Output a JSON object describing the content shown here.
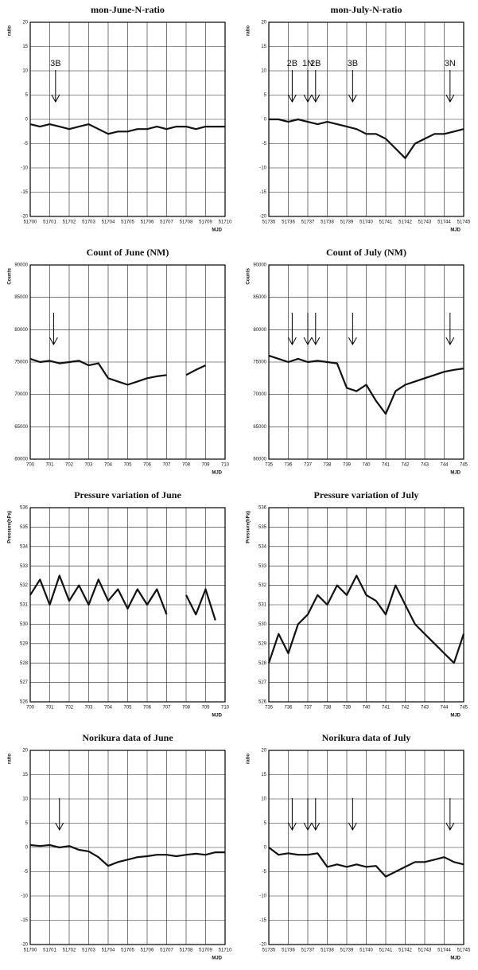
{
  "chart_data": [
    {
      "type": "line",
      "title": "mon-June-N-ratio",
      "ylabel": "ratio",
      "xlabel": "MJD",
      "x": [
        51700,
        51700.5,
        51701,
        51701.5,
        51702,
        51702.5,
        51703,
        51703.5,
        51704,
        51704.5,
        51705,
        51705.5,
        51706,
        51706.5,
        51707,
        51707.5,
        51708,
        51708.5,
        51709,
        51709.5,
        51710
      ],
      "series": [
        {
          "color": "#111111",
          "values": [
            -1,
            -1.5,
            -1,
            -1.5,
            -2,
            -1.5,
            -1,
            -2,
            -3,
            -2.5,
            -2.5,
            -2,
            -2,
            -1.5,
            -2,
            -1.5,
            -1.5,
            -2,
            -1.5,
            -1.5,
            -1.5
          ]
        }
      ],
      "xlim": [
        51700,
        51710
      ],
      "ylim": [
        -20,
        20
      ],
      "xticks": [
        51700,
        51701,
        51702,
        51703,
        51704,
        51705,
        51706,
        51707,
        51708,
        51709,
        51710
      ],
      "yticks": [
        -20,
        -15,
        -10,
        -5,
        0,
        5,
        10,
        15,
        20
      ],
      "grid": true,
      "annotations": [
        {
          "x": 51701.3,
          "label": "3B"
        }
      ]
    },
    {
      "type": "line",
      "title": "mon-July-N-ratio",
      "ylabel": "ratio",
      "xlabel": "MJD",
      "x": [
        51735,
        51735.5,
        51736,
        51736.5,
        51737,
        51737.5,
        51738,
        51738.5,
        51739,
        51739.5,
        51740,
        51740.5,
        51741,
        51741.5,
        51742,
        51742.5,
        51743,
        51743.5,
        51744,
        51744.5,
        51745
      ],
      "series": [
        {
          "color": "#111111",
          "values": [
            0,
            0,
            -0.5,
            0,
            -0.5,
            -1,
            -0.5,
            -1,
            -1.5,
            -2,
            -3,
            -3,
            -4,
            -6,
            -8,
            -5,
            -4,
            -3,
            -3,
            -2.5,
            -2
          ]
        }
      ],
      "xlim": [
        51735,
        51745
      ],
      "ylim": [
        -20,
        20
      ],
      "xticks": [
        51735,
        51736,
        51737,
        51738,
        51739,
        51740,
        51741,
        51742,
        51743,
        51744,
        51745
      ],
      "yticks": [
        -20,
        -15,
        -10,
        -5,
        0,
        5,
        10,
        15,
        20
      ],
      "grid": true,
      "annotations": [
        {
          "x": 51736.2,
          "label": "2B"
        },
        {
          "x": 51737.0,
          "label": "1N"
        },
        {
          "x": 51737.4,
          "label": "2B"
        },
        {
          "x": 51739.3,
          "label": "3B"
        },
        {
          "x": 51744.3,
          "label": "3N"
        }
      ]
    },
    {
      "type": "line",
      "title": "Count of June (NM)",
      "ylabel": "Counts",
      "xlabel": "MJD",
      "x": [
        700,
        700.5,
        701,
        701.5,
        702,
        702.5,
        703,
        703.5,
        704,
        704.5,
        705,
        705.5,
        706,
        706.5,
        707,
        707.5,
        708,
        708.5,
        709,
        709.5,
        710
      ],
      "series": [
        {
          "color": "#111111",
          "values": [
            75500,
            75000,
            75200,
            74800,
            75000,
            75200,
            74500,
            74800,
            72500,
            72000,
            71500,
            72000,
            72500,
            72800,
            73000,
            null,
            73000,
            73800,
            74500,
            null,
            null
          ]
        }
      ],
      "xlim": [
        700,
        710
      ],
      "ylim": [
        60000,
        90000
      ],
      "xticks": [
        700,
        701,
        702,
        703,
        704,
        705,
        706,
        707,
        708,
        709,
        710
      ],
      "yticks": [
        60000,
        65000,
        70000,
        75000,
        80000,
        85000,
        90000
      ],
      "grid": true,
      "arrows": [
        701.2
      ]
    },
    {
      "type": "line",
      "title": "Count of July (NM)",
      "ylabel": "Counts",
      "xlabel": "MJD",
      "x": [
        735,
        735.5,
        736,
        736.5,
        737,
        737.5,
        738,
        738.5,
        739,
        739.5,
        740,
        740.5,
        741,
        741.5,
        742,
        742.5,
        743,
        743.5,
        744,
        744.5,
        745
      ],
      "series": [
        {
          "color": "#111111",
          "values": [
            76000,
            75500,
            75000,
            75500,
            75000,
            75200,
            75000,
            74800,
            71000,
            70500,
            71500,
            69000,
            67000,
            70500,
            71500,
            72000,
            72500,
            73000,
            73500,
            73800,
            74000
          ]
        }
      ],
      "xlim": [
        735,
        745
      ],
      "ylim": [
        60000,
        90000
      ],
      "xticks": [
        735,
        736,
        737,
        738,
        739,
        740,
        741,
        742,
        743,
        744,
        745
      ],
      "yticks": [
        60000,
        65000,
        70000,
        75000,
        80000,
        85000,
        90000
      ],
      "grid": true,
      "arrows": [
        736.2,
        737.0,
        737.4,
        739.3,
        744.3
      ]
    },
    {
      "type": "line",
      "title": "Pressure variation of June",
      "ylabel": "Pressure(hPa)",
      "xlabel": "MJD",
      "x": [
        700,
        700.5,
        701,
        701.5,
        702,
        702.5,
        703,
        703.5,
        704,
        704.5,
        705,
        705.5,
        706,
        706.5,
        707,
        707.5,
        708,
        708.5,
        709,
        709.5,
        710
      ],
      "series": [
        {
          "color": "#111111",
          "values": [
            531.5,
            532.3,
            531,
            532.5,
            531.2,
            532,
            531,
            532.3,
            531.2,
            531.8,
            530.8,
            531.8,
            531,
            531.8,
            530.5,
            null,
            531.5,
            530.5,
            531.8,
            530.2,
            null
          ]
        }
      ],
      "xlim": [
        700,
        710
      ],
      "ylim": [
        526,
        536
      ],
      "xticks": [
        700,
        701,
        702,
        703,
        704,
        705,
        706,
        707,
        708,
        709,
        710
      ],
      "yticks": [
        526,
        527,
        528,
        529,
        530,
        531,
        532,
        533,
        534,
        535,
        536
      ],
      "grid": true
    },
    {
      "type": "line",
      "title": "Pressure variation of July",
      "ylabel": "Pressure(hPa)",
      "xlabel": "MJD",
      "x": [
        735,
        735.5,
        736,
        736.5,
        737,
        737.5,
        738,
        738.5,
        739,
        739.5,
        740,
        740.5,
        741,
        741.5,
        742,
        742.5,
        743,
        743.5,
        744,
        744.5,
        745
      ],
      "series": [
        {
          "color": "#111111",
          "values": [
            528,
            529.5,
            528.5,
            530,
            530.5,
            531.5,
            531,
            532,
            531.5,
            532.5,
            531.5,
            531.2,
            530.5,
            532,
            531,
            530,
            529.5,
            529,
            528.5,
            528,
            529.5
          ]
        }
      ],
      "xlim": [
        735,
        745
      ],
      "ylim": [
        526,
        536
      ],
      "xticks": [
        735,
        736,
        737,
        738,
        739,
        740,
        741,
        742,
        743,
        744,
        745
      ],
      "yticks": [
        526,
        527,
        528,
        529,
        530,
        531,
        532,
        533,
        534,
        535,
        536
      ],
      "grid": true
    },
    {
      "type": "line",
      "title": "Norikura data of June",
      "ylabel": "ratio",
      "xlabel": "MJD",
      "x": [
        51700,
        51700.5,
        51701,
        51701.5,
        51702,
        51702.5,
        51703,
        51703.5,
        51704,
        51704.5,
        51705,
        51705.5,
        51706,
        51706.5,
        51707,
        51707.5,
        51708,
        51708.5,
        51709,
        51709.5,
        51710
      ],
      "series": [
        {
          "color": "#111111",
          "values": [
            0.5,
            0.3,
            0.5,
            0,
            0.3,
            -0.5,
            -0.8,
            -2,
            -3.8,
            -3,
            -2.5,
            -2,
            -1.8,
            -1.5,
            -1.5,
            -1.8,
            -1.5,
            -1.3,
            -1.5,
            -1,
            -1
          ]
        }
      ],
      "xlim": [
        51700,
        51710
      ],
      "ylim": [
        -20,
        20
      ],
      "xticks": [
        51700,
        51701,
        51702,
        51703,
        51704,
        51705,
        51706,
        51707,
        51708,
        51709,
        51710
      ],
      "yticks": [
        -20,
        -15,
        -10,
        -5,
        0,
        5,
        10,
        15,
        20
      ],
      "grid": true,
      "arrows": [
        51701.5
      ]
    },
    {
      "type": "line",
      "title": "Norikura data of July",
      "ylabel": "ratio",
      "xlabel": "MJD",
      "x": [
        51735,
        51735.5,
        51736,
        51736.5,
        51737,
        51737.5,
        51738,
        51738.5,
        51739,
        51739.5,
        51740,
        51740.5,
        51741,
        51741.5,
        51742,
        51742.5,
        51743,
        51743.5,
        51744,
        51744.5,
        51745
      ],
      "series": [
        {
          "color": "#111111",
          "values": [
            0,
            -1.5,
            -1.2,
            -1.5,
            -1.5,
            -1.2,
            -4,
            -3.5,
            -4,
            -3.5,
            -4,
            -3.8,
            -6,
            -5,
            -4,
            -3,
            -3,
            -2.5,
            -2,
            -3,
            -3.5
          ]
        }
      ],
      "xlim": [
        51735,
        51745
      ],
      "ylim": [
        -20,
        20
      ],
      "xticks": [
        51735,
        51736,
        51737,
        51738,
        51739,
        51740,
        51741,
        51742,
        51743,
        51744,
        51745
      ],
      "yticks": [
        -20,
        -15,
        -10,
        -5,
        0,
        5,
        10,
        15,
        20
      ],
      "grid": true,
      "arrows": [
        51736.2,
        51737.0,
        51737.4,
        51739.3,
        51744.3
      ]
    }
  ]
}
